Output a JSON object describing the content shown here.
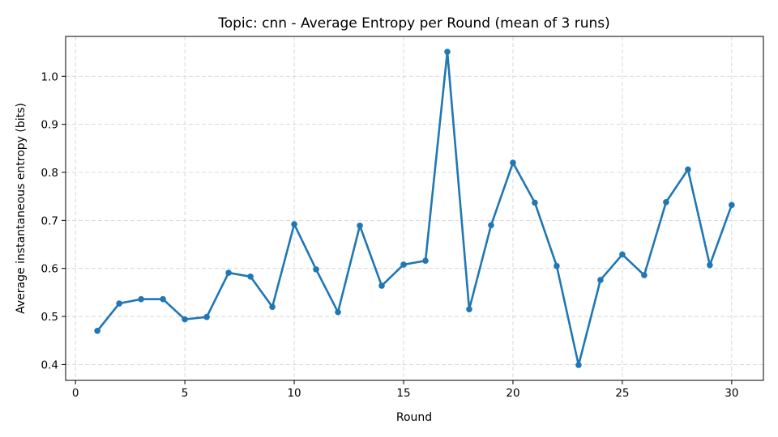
{
  "chart_data": {
    "type": "line",
    "title": "Topic: cnn - Average Entropy per Round (mean of 3 runs)",
    "xlabel": "Round",
    "ylabel": "Average instantaneous entropy (bits)",
    "xlim": [
      -0.45,
      31.45
    ],
    "ylim": [
      0.367,
      1.083
    ],
    "xticks": [
      0,
      5,
      10,
      15,
      20,
      25,
      30
    ],
    "yticks": [
      0.4,
      0.5,
      0.6,
      0.7,
      0.8,
      0.9,
      1.0
    ],
    "grid": true,
    "series": [
      {
        "color": "#1f77b4",
        "x": [
          1,
          2,
          3,
          4,
          5,
          6,
          7,
          8,
          9,
          10,
          11,
          12,
          13,
          14,
          15,
          16,
          17,
          18,
          19,
          20,
          21,
          22,
          23,
          24,
          25,
          26,
          27,
          28,
          29,
          30
        ],
        "y": [
          0.47,
          0.527,
          0.536,
          0.536,
          0.494,
          0.499,
          0.591,
          0.583,
          0.52,
          0.692,
          0.598,
          0.509,
          0.689,
          0.564,
          0.608,
          0.616,
          1.051,
          0.515,
          0.69,
          0.82,
          0.737,
          0.605,
          0.399,
          0.576,
          0.629,
          0.586,
          0.738,
          0.806,
          0.607,
          0.732
        ]
      }
    ]
  }
}
